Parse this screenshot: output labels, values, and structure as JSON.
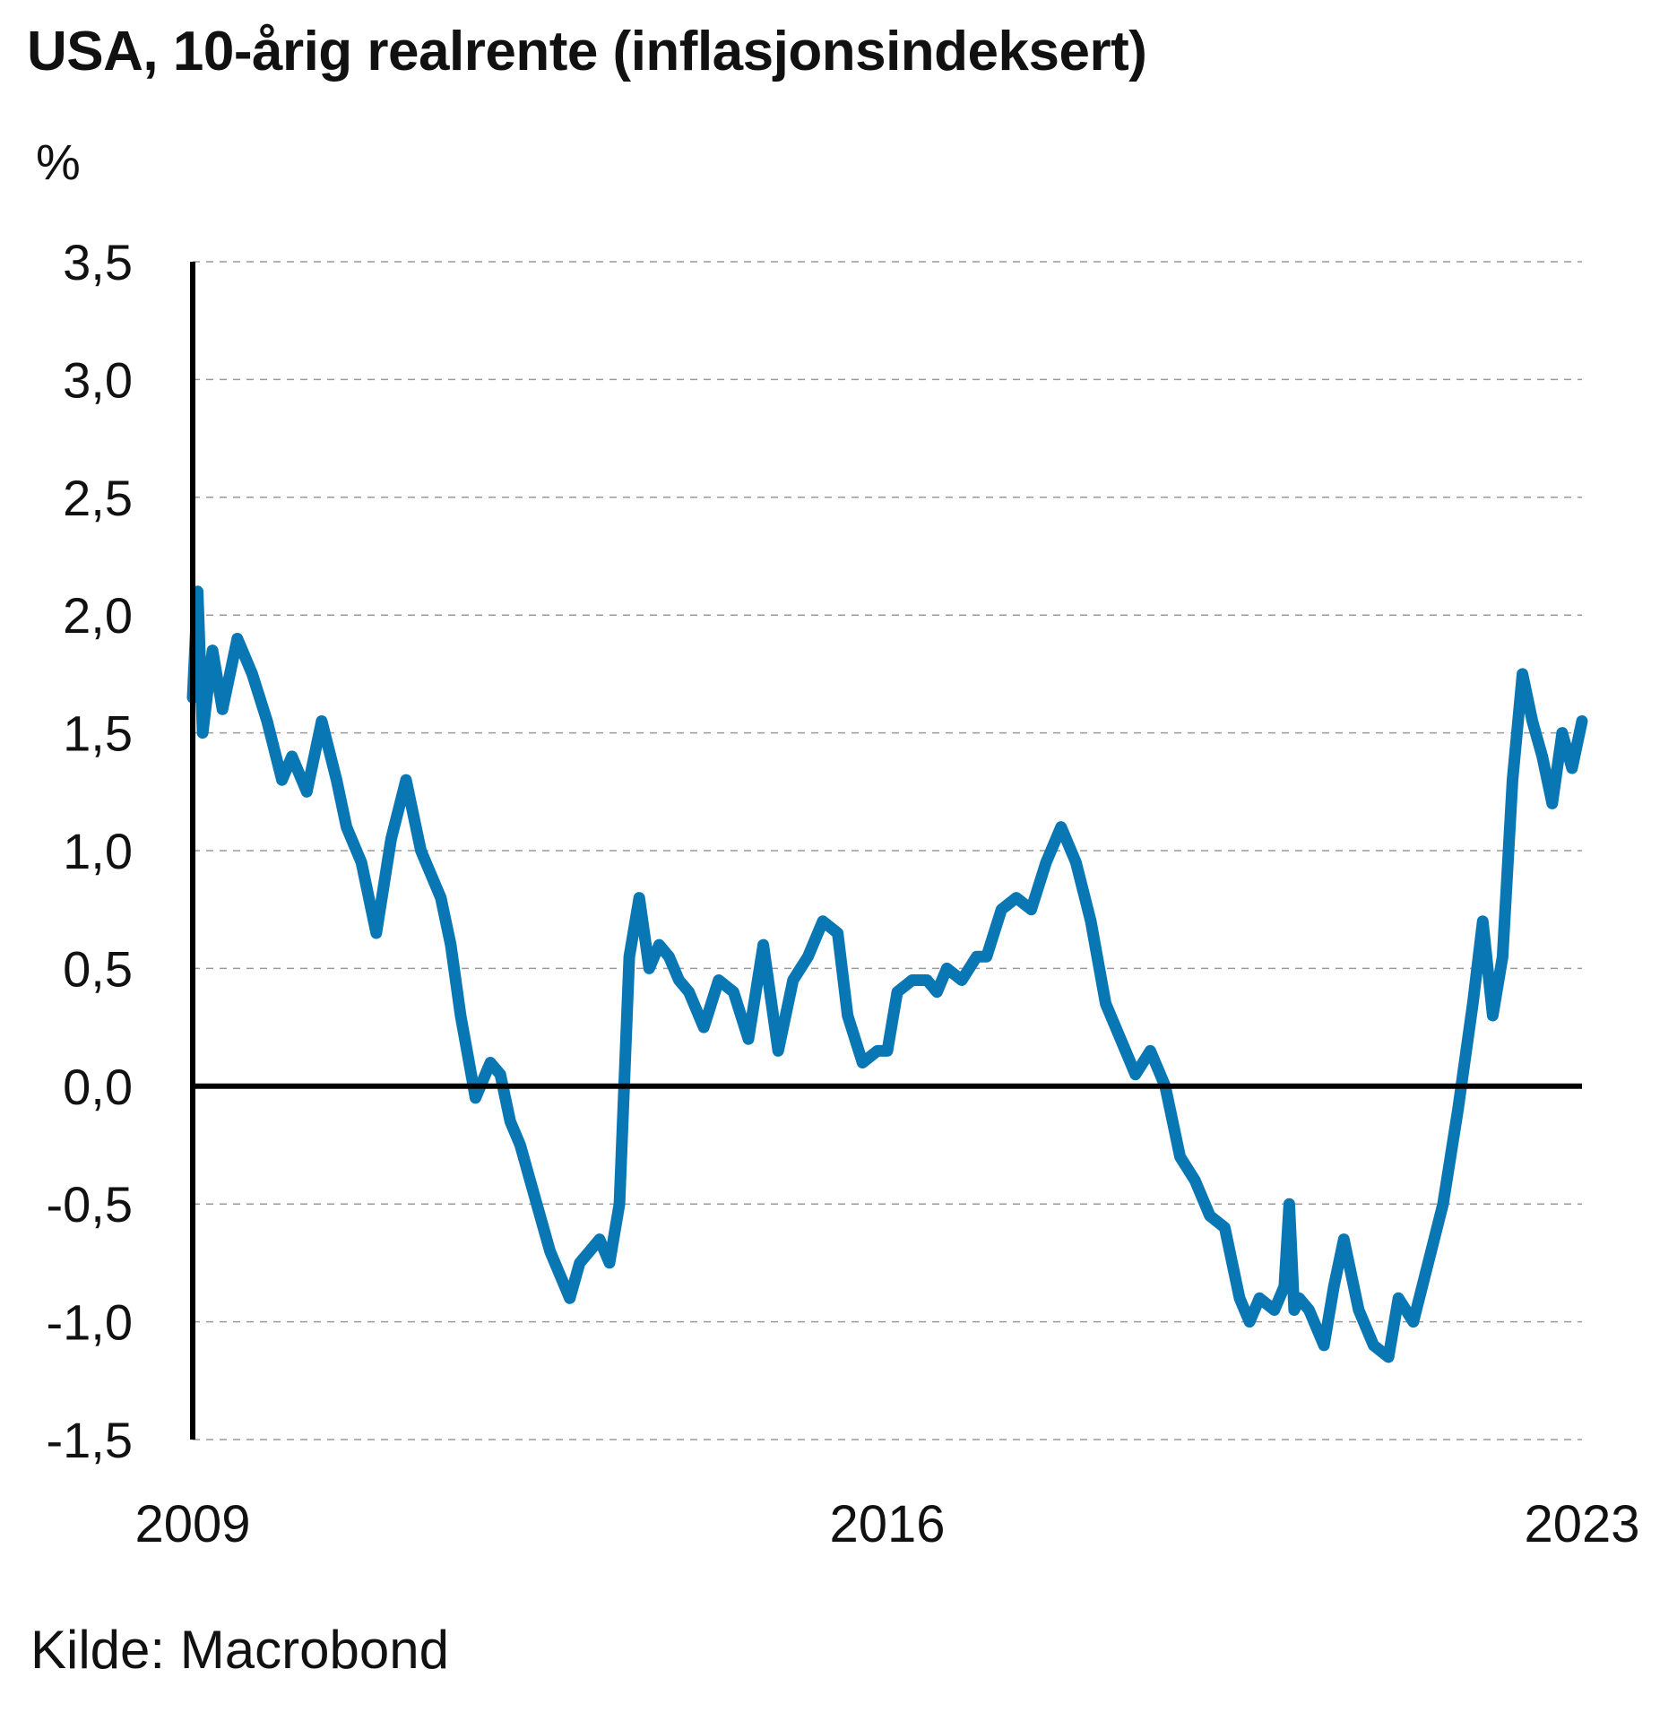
{
  "chart_data": {
    "type": "line",
    "title": "USA, 10-årig realrente (inflasjonsindeksert)",
    "ylabel": "%",
    "source": "Kilde: Macrobond",
    "ylim": [
      -1.5,
      3.5
    ],
    "xlim": [
      2009.0,
      2023.0
    ],
    "y_ticks": [
      "3,5",
      "3,0",
      "2,5",
      "2,0",
      "1,5",
      "1,0",
      "0,5",
      "0,0",
      "-0,5",
      "-1,0",
      "-1,5"
    ],
    "y_tick_values": [
      3.5,
      3.0,
      2.5,
      2.0,
      1.5,
      1.0,
      0.5,
      0.0,
      -0.5,
      -1.0,
      -1.5
    ],
    "x_ticks": [
      "2009",
      "2016",
      "2023"
    ],
    "x_tick_values": [
      2009,
      2016,
      2023
    ],
    "grid": true,
    "series": [
      {
        "color": "#0a77b5",
        "x": [
          2009.0,
          2009.05,
          2009.1,
          2009.2,
          2009.3,
          2009.45,
          2009.6,
          2009.75,
          2009.9,
          2010.0,
          2010.15,
          2010.3,
          2010.45,
          2010.55,
          2010.7,
          2010.85,
          2011.0,
          2011.15,
          2011.3,
          2011.5,
          2011.6,
          2011.7,
          2011.85,
          2012.0,
          2012.1,
          2012.2,
          2012.3,
          2012.4,
          2012.5,
          2012.6,
          2012.7,
          2012.8,
          2012.9,
          2013.0,
          2013.1,
          2013.2,
          2013.3,
          2013.4,
          2013.5,
          2013.6,
          2013.7,
          2013.8,
          2013.9,
          2014.0,
          2014.15,
          2014.3,
          2014.45,
          2014.6,
          2014.75,
          2014.9,
          2015.05,
          2015.2,
          2015.35,
          2015.5,
          2015.6,
          2015.75,
          2015.9,
          2016.0,
          2016.1,
          2016.25,
          2016.4,
          2016.5,
          2016.6,
          2016.75,
          2016.9,
          2017.0,
          2017.15,
          2017.3,
          2017.45,
          2017.6,
          2017.75,
          2017.9,
          2018.05,
          2018.2,
          2018.35,
          2018.5,
          2018.65,
          2018.8,
          2018.95,
          2019.1,
          2019.25,
          2019.4,
          2019.55,
          2019.65,
          2019.75,
          2019.9,
          2020.0,
          2020.05,
          2020.1,
          2020.15,
          2020.25,
          2020.4,
          2020.5,
          2020.6,
          2020.75,
          2020.9,
          2021.05,
          2021.15,
          2021.3,
          2021.45,
          2021.6,
          2021.75,
          2021.9,
          2022.0,
          2022.1,
          2022.2,
          2022.3,
          2022.4,
          2022.5,
          2022.6,
          2022.7,
          2022.8,
          2022.9,
          2023.0
        ],
        "y": [
          1.65,
          2.1,
          1.5,
          1.85,
          1.6,
          1.9,
          1.75,
          1.55,
          1.3,
          1.4,
          1.25,
          1.55,
          1.3,
          1.1,
          0.95,
          0.65,
          1.05,
          1.3,
          1.0,
          0.8,
          0.6,
          0.3,
          -0.05,
          0.1,
          0.05,
          -0.15,
          -0.25,
          -0.4,
          -0.55,
          -0.7,
          -0.8,
          -0.9,
          -0.75,
          -0.7,
          -0.65,
          -0.75,
          -0.5,
          0.55,
          0.8,
          0.5,
          0.6,
          0.55,
          0.45,
          0.4,
          0.25,
          0.45,
          0.4,
          0.2,
          0.6,
          0.15,
          0.45,
          0.55,
          0.7,
          0.65,
          0.3,
          0.1,
          0.15,
          0.15,
          0.4,
          0.45,
          0.45,
          0.4,
          0.5,
          0.45,
          0.55,
          0.55,
          0.75,
          0.8,
          0.75,
          0.95,
          1.1,
          0.95,
          0.7,
          0.35,
          0.2,
          0.05,
          0.15,
          0.0,
          -0.3,
          -0.4,
          -0.55,
          -0.6,
          -0.9,
          -1.0,
          -0.9,
          -0.95,
          -0.85,
          -0.5,
          -0.95,
          -0.9,
          -0.95,
          -1.1,
          -0.85,
          -0.65,
          -0.95,
          -1.1,
          -1.15,
          -0.9,
          -1.0,
          -0.75,
          -0.5,
          -0.1,
          0.35,
          0.7,
          0.3,
          0.55,
          1.3,
          1.75,
          1.55,
          1.4,
          1.2,
          1.5,
          1.35,
          1.55
        ]
      }
    ]
  }
}
